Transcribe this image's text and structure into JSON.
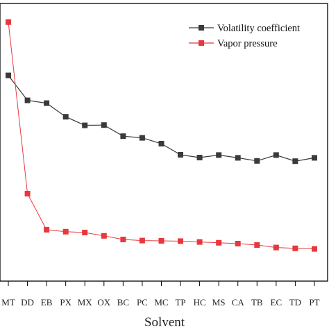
{
  "chart_data": {
    "type": "line",
    "xlabel": "Solvent",
    "ylabel": "",
    "categories": [
      "MT",
      "DD",
      "EB",
      "PX",
      "MX",
      "OX",
      "BC",
      "PC",
      "MC",
      "TP",
      "HC",
      "MS",
      "CA",
      "TB",
      "EC",
      "TD",
      "PT"
    ],
    "ylim": [
      0,
      1
    ],
    "grid": false,
    "legend_position": "top-right",
    "series": [
      {
        "name": "Volatility coefficient",
        "color": "#3a3a3a",
        "marker": "square",
        "values": [
          0.741,
          0.651,
          0.641,
          0.592,
          0.561,
          0.562,
          0.522,
          0.516,
          0.495,
          0.455,
          0.445,
          0.454,
          0.444,
          0.433,
          0.454,
          0.432,
          0.444
        ]
      },
      {
        "name": "Vapor pressure",
        "color": "#e8383d",
        "marker": "square",
        "values": [
          0.933,
          0.315,
          0.185,
          0.178,
          0.175,
          0.163,
          0.15,
          0.146,
          0.145,
          0.144,
          0.141,
          0.138,
          0.135,
          0.13,
          0.121,
          0.118,
          0.116
        ]
      }
    ]
  }
}
